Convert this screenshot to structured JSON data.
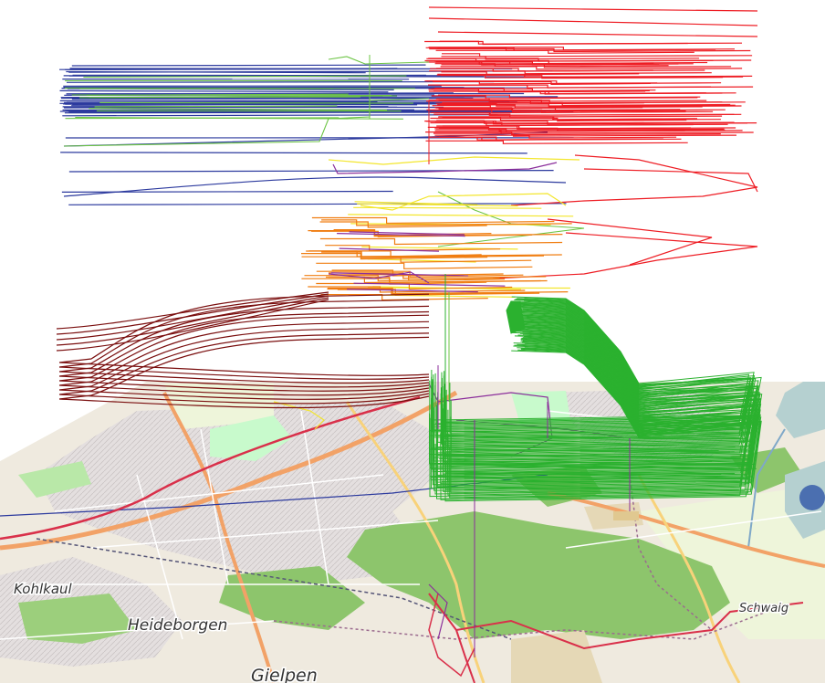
{
  "map": {
    "place_labels": [
      {
        "id": "kohlkaul",
        "text": "Kohlkaul"
      },
      {
        "id": "heideborgen",
        "text": "Heideborgen"
      },
      {
        "id": "gielpen",
        "text": "Gielpen"
      },
      {
        "id": "schwaig",
        "text": "Schwaig"
      }
    ],
    "colors": {
      "water": "#b5d0d0",
      "urban": "#e3dede",
      "forest": "#8dc56c",
      "park": "#c8facc",
      "farmland": "#eaf5d6",
      "sand": "#e5d8b6",
      "major_road": "#f2a267",
      "railway": "#9b6b8f",
      "route": "#d9304a"
    }
  },
  "trajectories": {
    "colors": {
      "red": "#ee1d24",
      "blue": "#2c3a9e",
      "green": "#2bb12f",
      "orange": "#f07d10",
      "yellow": "#f3e62d",
      "purple": "#8b2e9b",
      "dark_red": "#7a0e0e",
      "light_green": "#6bc443"
    }
  }
}
